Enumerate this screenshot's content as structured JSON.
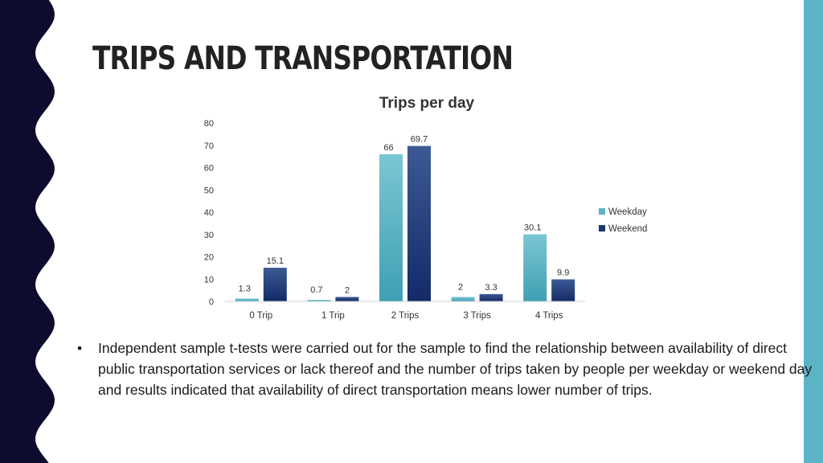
{
  "slide": {
    "title": "TRIPS AND TRANSPORTATION",
    "bullet": "Independent sample t-tests were carried out for the sample to find the relationship between availability of direct public transportation services or lack thereof and the number of trips taken by people per weekday or weekend day and results indicated that availability of direct transportation means lower number of trips.",
    "bullet_marker": "•"
  },
  "colors": {
    "background": "#ffffff",
    "left_band": "#0d0b2e",
    "right_stripe": "#5ab4c5",
    "weekday": "#5ab4c5",
    "weekend": "#1e3570"
  },
  "chart_data": {
    "type": "bar",
    "title": "Trips per day",
    "categories": [
      "0 Trip",
      "1 Trip",
      "2 Trips",
      "3 Trips",
      "4 Trips"
    ],
    "series": [
      {
        "name": "Weekday",
        "values": [
          1.3,
          0.7,
          66,
          2,
          30.1
        ],
        "labels": [
          "1.3",
          "0.7",
          "66",
          "2",
          "30.1"
        ]
      },
      {
        "name": "Weekend",
        "values": [
          15.1,
          2,
          69.7,
          3.3,
          9.9
        ],
        "labels": [
          "15.1",
          "2",
          "69.7",
          "3.3",
          "9.9"
        ]
      }
    ],
    "ylim": [
      0,
      80
    ],
    "yticks": [
      0,
      10,
      20,
      30,
      40,
      50,
      60,
      70,
      80
    ],
    "legend": "right",
    "grid": false
  }
}
